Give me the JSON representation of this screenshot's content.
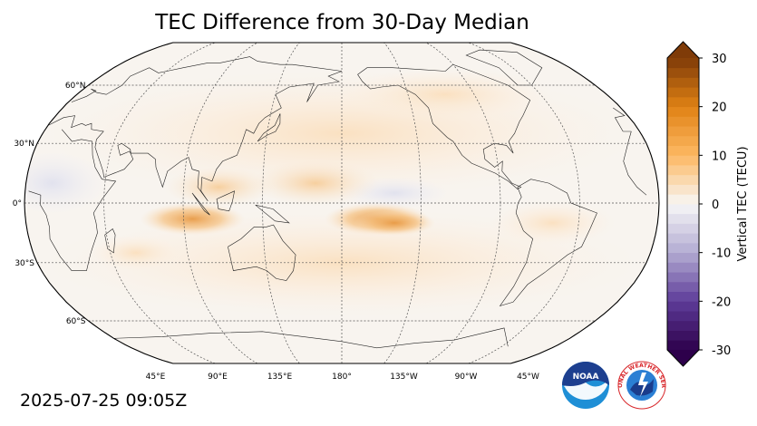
{
  "title": "TEC Difference from 30-Day Median",
  "timestamp": "2025-07-25 09:05Z",
  "map": {
    "projection": "robinson",
    "central_longitude": 180,
    "lat_ticks": [
      "60°N",
      "30°N",
      "0°",
      "30°S",
      "60°S"
    ],
    "lon_ticks": [
      "45°E",
      "90°E",
      "135°E",
      "180°",
      "135°W",
      "90°W",
      "45°W"
    ],
    "gridlines": true,
    "background_color": "#f8f4ef",
    "anomaly_regions": [
      {
        "region": "Southeast Asia / Indonesia",
        "lon": 95,
        "lat": -8,
        "value": 14
      },
      {
        "region": "Central Pacific south of equator",
        "lon": 200,
        "lat": -8,
        "value": 12
      },
      {
        "region": "Western Pacific north of equator",
        "lon": 165,
        "lat": 10,
        "value": 5
      },
      {
        "region": "South America",
        "lon": 300,
        "lat": -10,
        "value": 3
      }
    ]
  },
  "colorbar": {
    "label": "Vertical TEC (TECU)",
    "min": -30,
    "max": 30,
    "ticks": [
      "30",
      "20",
      "10",
      "0",
      "-10",
      "-20",
      "-30"
    ],
    "colormap": "PuOr_r",
    "extend": "both"
  },
  "logos": {
    "noaa": "NOAA",
    "nws": "NATIONAL WEATHER SERVICE"
  }
}
